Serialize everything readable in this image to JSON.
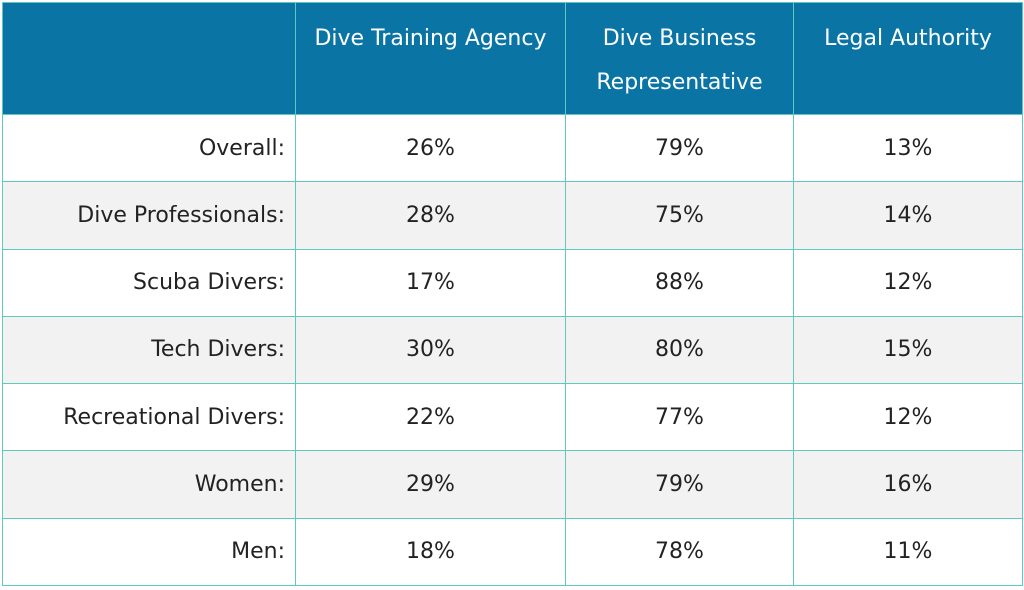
{
  "chart_data": {
    "type": "table",
    "columns": [
      "",
      "Dive Training Agency",
      "Dive Business Representative",
      "Legal Authority"
    ],
    "header_lines": [
      [
        ""
      ],
      [
        "Dive Training Agency"
      ],
      [
        "Dive Business",
        "Representative"
      ],
      [
        "Legal Authority"
      ]
    ],
    "rows": [
      {
        "label": "Overall:",
        "values": [
          "26%",
          "79%",
          "13%"
        ]
      },
      {
        "label": "Dive Professionals:",
        "values": [
          "28%",
          "75%",
          "14%"
        ]
      },
      {
        "label": "Scuba Divers:",
        "values": [
          "17%",
          "88%",
          "12%"
        ]
      },
      {
        "label": "Tech Divers:",
        "values": [
          "30%",
          "80%",
          "15%"
        ]
      },
      {
        "label": "Recreational Divers:",
        "values": [
          "22%",
          "77%",
          "12%"
        ]
      },
      {
        "label": "Women:",
        "values": [
          "29%",
          "79%",
          "16%"
        ]
      },
      {
        "label": "Men:",
        "values": [
          "18%",
          "78%",
          "11%"
        ]
      }
    ]
  },
  "colors": {
    "header_bg": "#0a74a4",
    "header_text": "#ffffff",
    "border": "#5fc9c0",
    "row_alt_bg": "#f2f2f2"
  }
}
